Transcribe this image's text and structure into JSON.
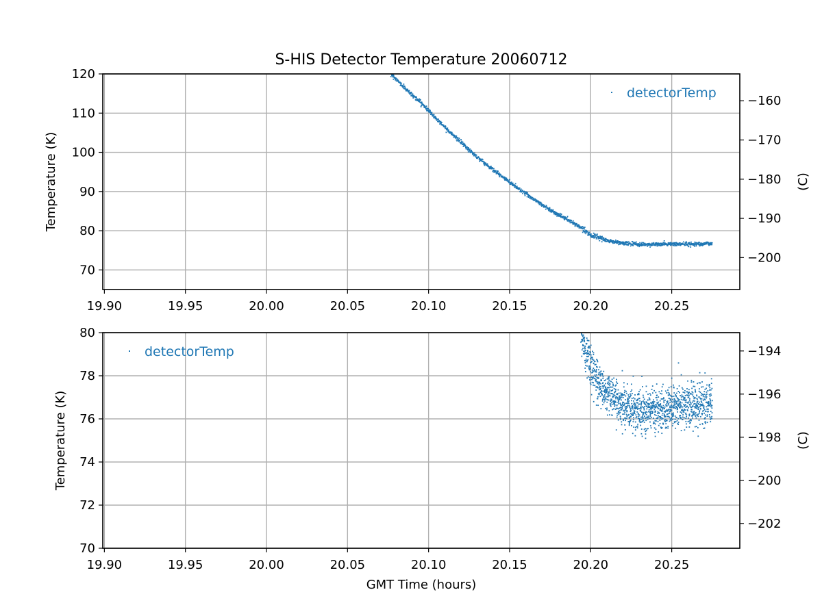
{
  "chart_data": [
    {
      "type": "scatter",
      "title": "S-HIS Detector Temperature 20060712",
      "xlabel": "",
      "ylabel": "Temperature (K)",
      "ylabel_right": "(C)",
      "xlim": [
        19.899,
        20.292
      ],
      "ylim": [
        65,
        120
      ],
      "ylim_right": [
        -208.15,
        -153.15
      ],
      "x_ticks": [
        "19.90",
        "19.95",
        "20.00",
        "20.05",
        "20.10",
        "20.15",
        "20.20",
        "20.25"
      ],
      "y_ticks": [
        "70",
        "80",
        "90",
        "100",
        "110",
        "120"
      ],
      "y_ticks_right": [
        "−200",
        "−190",
        "−180",
        "−170",
        "−160"
      ],
      "grid": true,
      "legend": {
        "entries": [
          "detectorTemp"
        ],
        "placement": "upper right"
      },
      "series": [
        {
          "name": "detectorTemp",
          "color": "#1f77b4",
          "x": [
            20.077,
            20.085,
            20.095,
            20.105,
            20.115,
            20.125,
            20.135,
            20.145,
            20.155,
            20.165,
            20.175,
            20.185,
            20.195,
            20.2,
            20.21,
            20.22,
            20.23,
            20.24,
            20.25,
            20.26,
            20.27,
            20.275
          ],
          "y": [
            120.0,
            116.5,
            112.8,
            108.5,
            104.5,
            100.6,
            97.1,
            93.9,
            90.9,
            88.0,
            85.3,
            83.0,
            80.6,
            78.9,
            77.5,
            76.8,
            76.5,
            76.5,
            76.6,
            76.6,
            76.7,
            76.7
          ]
        }
      ]
    },
    {
      "type": "scatter",
      "title": "",
      "xlabel": "GMT Time (hours)",
      "ylabel": "Temperature (K)",
      "ylabel_right": "(C)",
      "xlim": [
        19.899,
        20.292
      ],
      "ylim": [
        70,
        80
      ],
      "ylim_right": [
        -203.15,
        -193.15
      ],
      "x_ticks": [
        "19.90",
        "19.95",
        "20.00",
        "20.05",
        "20.10",
        "20.15",
        "20.20",
        "20.25"
      ],
      "y_ticks": [
        "70",
        "72",
        "74",
        "76",
        "78",
        "80"
      ],
      "y_ticks_right": [
        "−202",
        "−200",
        "−198",
        "−196",
        "−194"
      ],
      "grid": true,
      "legend": {
        "entries": [
          "detectorTemp"
        ],
        "placement": "upper left"
      },
      "series": [
        {
          "name": "detectorTemp",
          "color": "#1f77b4",
          "x": [
            20.194,
            20.197,
            20.2,
            20.203,
            20.207,
            20.212,
            20.217,
            20.222,
            20.227,
            20.232,
            20.237,
            20.242,
            20.247,
            20.252,
            20.257,
            20.262,
            20.267,
            20.272,
            20.275
          ],
          "y": [
            80.0,
            79.2,
            78.6,
            78.0,
            77.5,
            77.1,
            76.8,
            76.6,
            76.5,
            76.4,
            76.4,
            76.5,
            76.5,
            76.6,
            76.6,
            76.6,
            76.6,
            76.7,
            76.7
          ]
        }
      ]
    }
  ]
}
